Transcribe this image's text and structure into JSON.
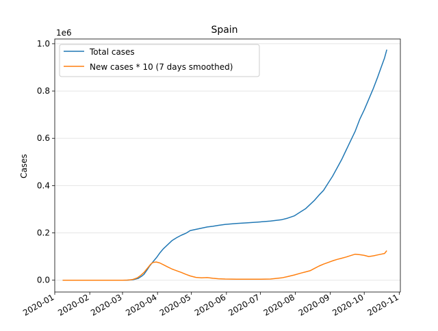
{
  "chart_data": {
    "type": "line",
    "title": "Spain",
    "ylabel": "Cases",
    "xlabel": "",
    "y_offset_label": "1e6",
    "x_ticks": [
      "2020-01",
      "2020-02",
      "2020-03",
      "2020-04",
      "2020-05",
      "2020-06",
      "2020-07",
      "2020-08",
      "2020-09",
      "2020-10",
      "2020-11"
    ],
    "y_ticks": [
      "0.0",
      "0.2",
      "0.4",
      "0.6",
      "0.8",
      "1.0"
    ],
    "y_tick_values": [
      0,
      0.2,
      0.4,
      0.6,
      0.8,
      1.0
    ],
    "xlim": [
      "2020-01-01",
      "2020-11-02"
    ],
    "ylim": [
      -0.05,
      1.02
    ],
    "grid": "horizontal",
    "legend_position": "upper-left",
    "series": [
      {
        "name": "Total cases",
        "color": "#1f77b4",
        "points": [
          [
            "2020-01-08",
            0.0
          ],
          [
            "2020-02-01",
            0.0
          ],
          [
            "2020-03-01",
            0.0
          ],
          [
            "2020-03-05",
            0.0003
          ],
          [
            "2020-03-10",
            0.0017
          ],
          [
            "2020-03-15",
            0.0077
          ],
          [
            "2020-03-18",
            0.017
          ],
          [
            "2020-03-20",
            0.025
          ],
          [
            "2020-03-23",
            0.045
          ],
          [
            "2020-03-25",
            0.06
          ],
          [
            "2020-03-28",
            0.078
          ],
          [
            "2020-03-31",
            0.095
          ],
          [
            "2020-04-03",
            0.115
          ],
          [
            "2020-04-06",
            0.132
          ],
          [
            "2020-04-10",
            0.15
          ],
          [
            "2020-04-14",
            0.168
          ],
          [
            "2020-04-18",
            0.18
          ],
          [
            "2020-04-22",
            0.19
          ],
          [
            "2020-04-26",
            0.198
          ],
          [
            "2020-04-30",
            0.21
          ],
          [
            "2020-05-05",
            0.215
          ],
          [
            "2020-05-10",
            0.22
          ],
          [
            "2020-05-15",
            0.225
          ],
          [
            "2020-05-20",
            0.228
          ],
          [
            "2020-05-25",
            0.232
          ],
          [
            "2020-05-31",
            0.236
          ],
          [
            "2020-06-10",
            0.24
          ],
          [
            "2020-06-20",
            0.243
          ],
          [
            "2020-06-30",
            0.246
          ],
          [
            "2020-07-10",
            0.25
          ],
          [
            "2020-07-20",
            0.256
          ],
          [
            "2020-07-25",
            0.262
          ],
          [
            "2020-07-31",
            0.272
          ],
          [
            "2020-08-06",
            0.29
          ],
          [
            "2020-08-10",
            0.302
          ],
          [
            "2020-08-14",
            0.32
          ],
          [
            "2020-08-18",
            0.338
          ],
          [
            "2020-08-22",
            0.36
          ],
          [
            "2020-08-26",
            0.38
          ],
          [
            "2020-08-30",
            0.41
          ],
          [
            "2020-09-03",
            0.44
          ],
          [
            "2020-09-07",
            0.475
          ],
          [
            "2020-09-11",
            0.51
          ],
          [
            "2020-09-15",
            0.55
          ],
          [
            "2020-09-19",
            0.59
          ],
          [
            "2020-09-23",
            0.63
          ],
          [
            "2020-09-27",
            0.68
          ],
          [
            "2020-10-01",
            0.72
          ],
          [
            "2020-10-05",
            0.765
          ],
          [
            "2020-10-09",
            0.81
          ],
          [
            "2020-10-13",
            0.86
          ],
          [
            "2020-10-16",
            0.9
          ],
          [
            "2020-10-19",
            0.94
          ],
          [
            "2020-10-21",
            0.975
          ]
        ]
      },
      {
        "name": "New cases * 10 (7 days smoothed)",
        "color": "#ff7f0e",
        "points": [
          [
            "2020-01-08",
            0.0
          ],
          [
            "2020-02-01",
            0.0
          ],
          [
            "2020-03-01",
            0.0
          ],
          [
            "2020-03-06",
            0.0005
          ],
          [
            "2020-03-10",
            0.003
          ],
          [
            "2020-03-14",
            0.01
          ],
          [
            "2020-03-17",
            0.02
          ],
          [
            "2020-03-20",
            0.033
          ],
          [
            "2020-03-23",
            0.05
          ],
          [
            "2020-03-26",
            0.068
          ],
          [
            "2020-03-28",
            0.075
          ],
          [
            "2020-03-31",
            0.077
          ],
          [
            "2020-04-03",
            0.073
          ],
          [
            "2020-04-06",
            0.066
          ],
          [
            "2020-04-10",
            0.056
          ],
          [
            "2020-04-14",
            0.047
          ],
          [
            "2020-04-18",
            0.04
          ],
          [
            "2020-04-22",
            0.033
          ],
          [
            "2020-04-26",
            0.025
          ],
          [
            "2020-04-30",
            0.018
          ],
          [
            "2020-05-05",
            0.012
          ],
          [
            "2020-05-10",
            0.01
          ],
          [
            "2020-05-15",
            0.011
          ],
          [
            "2020-05-20",
            0.008
          ],
          [
            "2020-05-25",
            0.006
          ],
          [
            "2020-05-31",
            0.005
          ],
          [
            "2020-06-10",
            0.0045
          ],
          [
            "2020-06-20",
            0.004
          ],
          [
            "2020-06-30",
            0.004
          ],
          [
            "2020-07-10",
            0.005
          ],
          [
            "2020-07-20",
            0.01
          ],
          [
            "2020-07-25",
            0.015
          ],
          [
            "2020-07-31",
            0.022
          ],
          [
            "2020-08-06",
            0.03
          ],
          [
            "2020-08-10",
            0.035
          ],
          [
            "2020-08-14",
            0.04
          ],
          [
            "2020-08-18",
            0.05
          ],
          [
            "2020-08-22",
            0.06
          ],
          [
            "2020-08-26",
            0.068
          ],
          [
            "2020-08-30",
            0.075
          ],
          [
            "2020-09-03",
            0.082
          ],
          [
            "2020-09-07",
            0.088
          ],
          [
            "2020-09-11",
            0.093
          ],
          [
            "2020-09-15",
            0.098
          ],
          [
            "2020-09-19",
            0.104
          ],
          [
            "2020-09-23",
            0.11
          ],
          [
            "2020-09-27",
            0.108
          ],
          [
            "2020-10-01",
            0.105
          ],
          [
            "2020-10-05",
            0.1
          ],
          [
            "2020-10-09",
            0.103
          ],
          [
            "2020-10-13",
            0.107
          ],
          [
            "2020-10-16",
            0.11
          ],
          [
            "2020-10-19",
            0.113
          ],
          [
            "2020-10-21",
            0.125
          ]
        ]
      }
    ]
  }
}
